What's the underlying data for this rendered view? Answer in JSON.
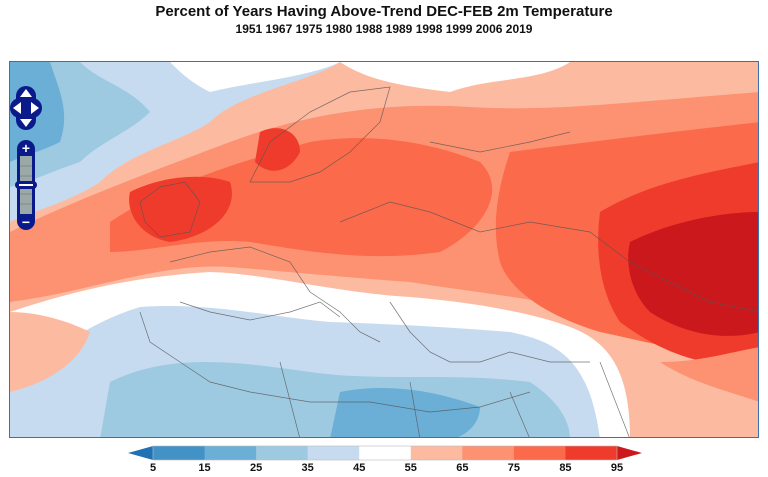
{
  "title": "Percent of Years Having Above-Trend DEC-FEB 2m Temperature",
  "subtitle": "1951 1967 1975 1980 1988 1989 1998 1999 2006 2019",
  "controls": {
    "pan_up": "arrow-up-icon",
    "pan_down": "arrow-down-icon",
    "pan_left": "arrow-left-icon",
    "pan_right": "arrow-right-icon",
    "zoom_in": "+",
    "zoom_out": "−"
  },
  "colorbar": {
    "ticks": [
      "5",
      "15",
      "25",
      "35",
      "45",
      "55",
      "65",
      "75",
      "85",
      "95"
    ],
    "under_color": "#2171b5",
    "over_color": "#cb181d",
    "colors": [
      "#4292c6",
      "#6baed6",
      "#9ecae1",
      "#c6dbef",
      "#ffffff",
      "#fcbba1",
      "#fc9272",
      "#fb6a4a",
      "#ef3b2c"
    ]
  }
}
